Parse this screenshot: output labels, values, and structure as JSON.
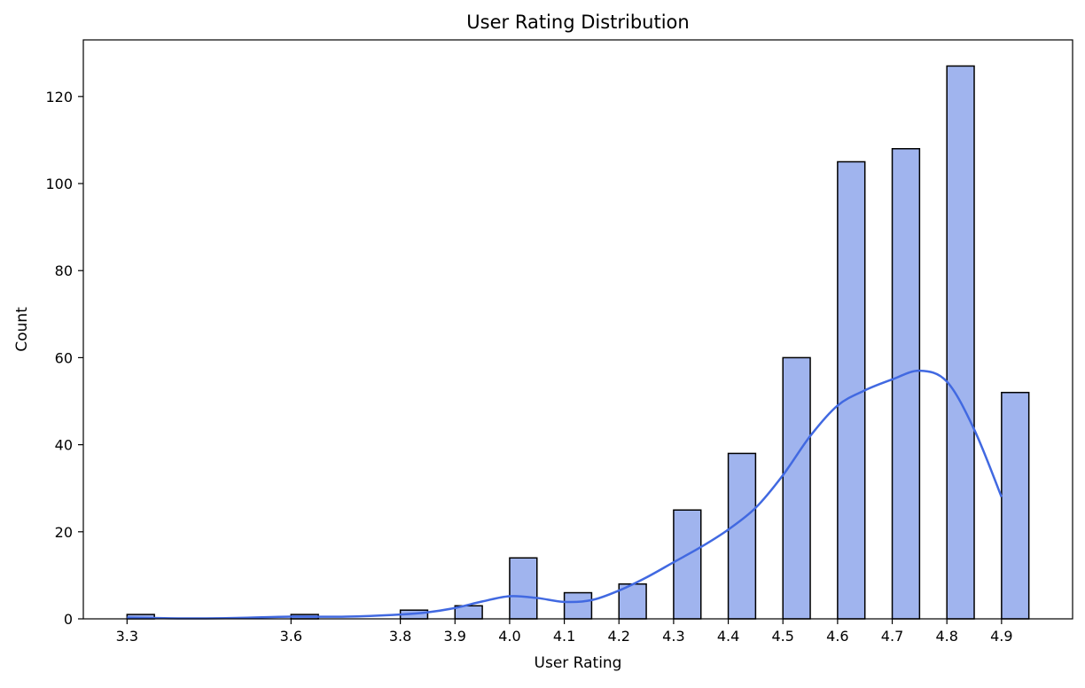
{
  "chart_data": {
    "type": "bar",
    "title": "User Rating Distribution",
    "xlabel": "User Rating",
    "ylabel": "Count",
    "xlim": [
      3.22,
      5.03
    ],
    "ylim": [
      0,
      133
    ],
    "x_ticks": [
      3.3,
      3.6,
      3.8,
      3.9,
      4.0,
      4.1,
      4.2,
      4.3,
      4.4,
      4.5,
      4.6,
      4.7,
      4.8,
      4.9
    ],
    "x_tick_labels": [
      "3.3",
      "3.6",
      "3.8",
      "3.9",
      "4.0",
      "4.1",
      "4.2",
      "4.3",
      "4.4",
      "4.5",
      "4.6",
      "4.7",
      "4.8",
      "4.9"
    ],
    "y_ticks": [
      0,
      20,
      40,
      60,
      80,
      100,
      120
    ],
    "y_tick_labels": [
      "0",
      "20",
      "40",
      "60",
      "80",
      "100",
      "120"
    ],
    "bin_width": 0.05,
    "bars": [
      {
        "x": 3.3,
        "count": 1
      },
      {
        "x": 3.6,
        "count": 1
      },
      {
        "x": 3.8,
        "count": 2
      },
      {
        "x": 3.9,
        "count": 3
      },
      {
        "x": 4.0,
        "count": 14
      },
      {
        "x": 4.1,
        "count": 6
      },
      {
        "x": 4.2,
        "count": 8
      },
      {
        "x": 4.3,
        "count": 25
      },
      {
        "x": 4.4,
        "count": 38
      },
      {
        "x": 4.5,
        "count": 60
      },
      {
        "x": 4.6,
        "count": 105
      },
      {
        "x": 4.7,
        "count": 108
      },
      {
        "x": 4.8,
        "count": 127
      },
      {
        "x": 4.9,
        "count": 52
      }
    ],
    "kde": [
      [
        3.3,
        0.3
      ],
      [
        3.4,
        0.1
      ],
      [
        3.5,
        0.2
      ],
      [
        3.6,
        0.5
      ],
      [
        3.7,
        0.5
      ],
      [
        3.8,
        1.0
      ],
      [
        3.85,
        1.5
      ],
      [
        3.9,
        2.5
      ],
      [
        3.95,
        4.0
      ],
      [
        4.0,
        5.2
      ],
      [
        4.05,
        4.8
      ],
      [
        4.1,
        3.9
      ],
      [
        4.15,
        4.3
      ],
      [
        4.2,
        6.5
      ],
      [
        4.25,
        9.5
      ],
      [
        4.3,
        13.0
      ],
      [
        4.35,
        16.5
      ],
      [
        4.4,
        20.5
      ],
      [
        4.45,
        25.5
      ],
      [
        4.5,
        33.0
      ],
      [
        4.55,
        42.0
      ],
      [
        4.6,
        49.0
      ],
      [
        4.65,
        52.5
      ],
      [
        4.7,
        55.0
      ],
      [
        4.75,
        57.0
      ],
      [
        4.8,
        54.5
      ],
      [
        4.85,
        43.5
      ],
      [
        4.9,
        28.0
      ]
    ],
    "grid": false,
    "colors": {
      "bar_fill": "#a0b4ee",
      "bar_edge": "#000000",
      "kde_line": "#4169e1"
    }
  }
}
